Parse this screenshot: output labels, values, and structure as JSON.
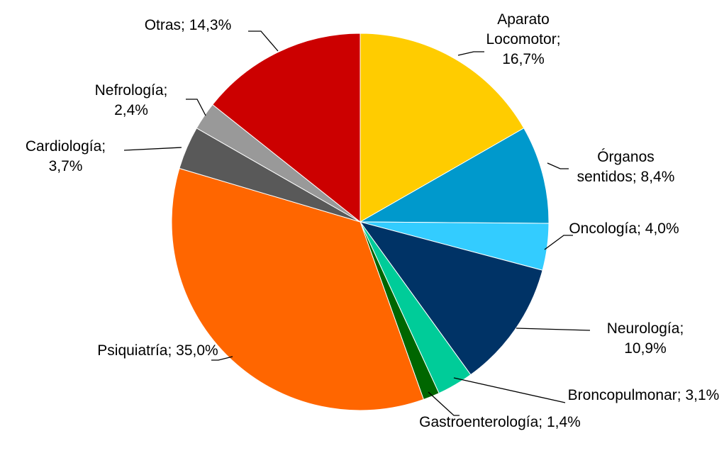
{
  "chart_data": {
    "type": "pie",
    "categories": [
      "Aparato Locomotor",
      "Órganos sentidos",
      "Oncología",
      "Neurología",
      "Broncopulmonar",
      "Gastroenterología",
      "Psiquiatría",
      "Cardiología",
      "Nefrología",
      "Otras"
    ],
    "values": [
      16.7,
      8.4,
      4.0,
      10.9,
      3.1,
      1.4,
      35.0,
      3.7,
      2.4,
      14.3
    ],
    "value_labels": [
      "16,7%",
      "8,4%",
      "4,0%",
      "10,9%",
      "3,1%",
      "1,4%",
      "35,0%",
      "3,7%",
      "2,4%",
      "14,3%"
    ],
    "label_separator": ";",
    "colors": [
      "#FFCC00",
      "#0099CC",
      "#33CCFF",
      "#003366",
      "#00CC99",
      "#006600",
      "#FF6600",
      "#595959",
      "#999999",
      "#CC0000"
    ]
  }
}
